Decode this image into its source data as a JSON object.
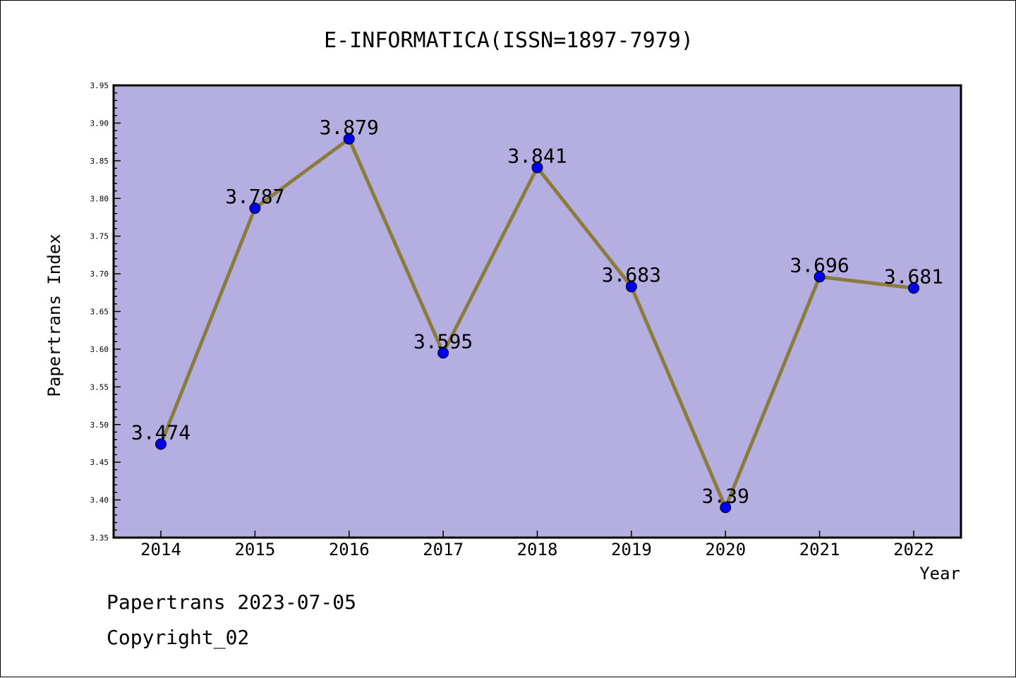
{
  "chart_data": {
    "type": "line",
    "title": "E-INFORMATICA(ISSN=1897-7979)",
    "xlabel": "Year",
    "ylabel": "Papertrans Index",
    "categories": [
      "2014",
      "2015",
      "2016",
      "2017",
      "2018",
      "2019",
      "2020",
      "2021",
      "2022"
    ],
    "series": [
      {
        "values": [
          3.474,
          3.787,
          3.879,
          3.595,
          3.841,
          3.683,
          3.39,
          3.696,
          3.681
        ],
        "labels": [
          "3.474",
          "3.787",
          "3.879",
          "3.595",
          "3.841",
          "3.683",
          "3.39",
          "3.696",
          "3.681"
        ]
      }
    ],
    "ylim": [
      3.35,
      3.95
    ],
    "yticks": [
      "3.35",
      "3.40",
      "3.45",
      "3.50",
      "3.55",
      "3.60",
      "3.65",
      "3.70",
      "3.75",
      "3.80",
      "3.85",
      "3.90",
      "3.95"
    ],
    "grid": false,
    "colors": {
      "plot_bg": "#b4aee1",
      "line": "#8b7b3c",
      "marker": "#0000ee"
    }
  },
  "footer": {
    "line1": "Papertrans 2023-07-05",
    "line2": "Copyright_02"
  }
}
